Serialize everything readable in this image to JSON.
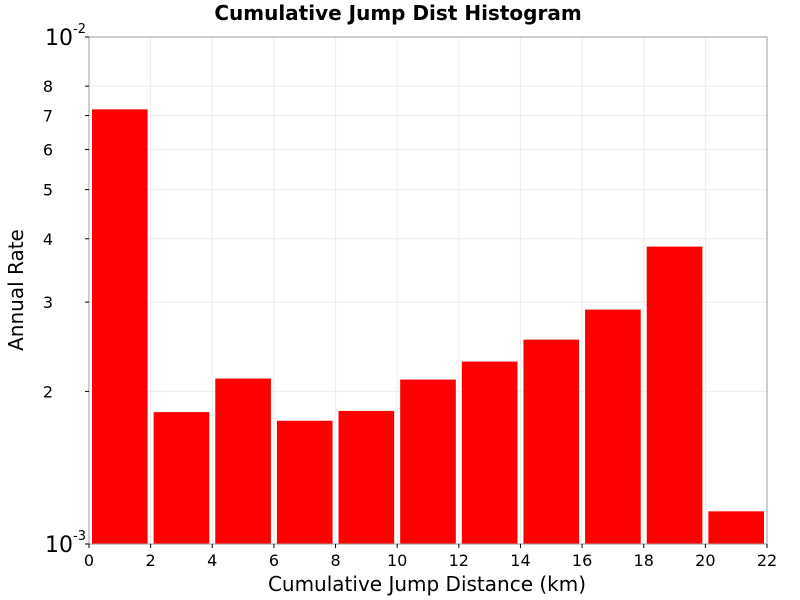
{
  "chart_data": {
    "type": "bar",
    "title": "Cumulative Jump Dist Histogram",
    "xlabel": "Cumulative Jump Distance (km)",
    "ylabel": "Annual Rate",
    "x_tick_labels": [
      "0",
      "2",
      "4",
      "6",
      "8",
      "10",
      "12",
      "14",
      "16",
      "18",
      "20",
      "22"
    ],
    "xlim": [
      0,
      22
    ],
    "y_scale": "log",
    "ylim": [
      0.001,
      0.01
    ],
    "y_tick_labels": [
      {
        "value": 0.001,
        "base": "10",
        "exp": "-3"
      },
      {
        "value": 0.002,
        "label": "2"
      },
      {
        "value": 0.003,
        "label": "3"
      },
      {
        "value": 0.004,
        "label": "4"
      },
      {
        "value": 0.005,
        "label": "5"
      },
      {
        "value": 0.006,
        "label": "6"
      },
      {
        "value": 0.007,
        "label": "7"
      },
      {
        "value": 0.008,
        "label": "8"
      },
      {
        "value": 0.01,
        "base": "10",
        "exp": "-2"
      }
    ],
    "bin_width": 2,
    "x": [
      1,
      3,
      5,
      7,
      9,
      11,
      13,
      15,
      17,
      19,
      21
    ],
    "values": [
      0.0072,
      0.00182,
      0.00212,
      0.00175,
      0.00183,
      0.00211,
      0.00229,
      0.00253,
      0.0029,
      0.00386,
      0.00116
    ],
    "bar_color": "#ff0000",
    "grid": true,
    "legend": "none"
  }
}
